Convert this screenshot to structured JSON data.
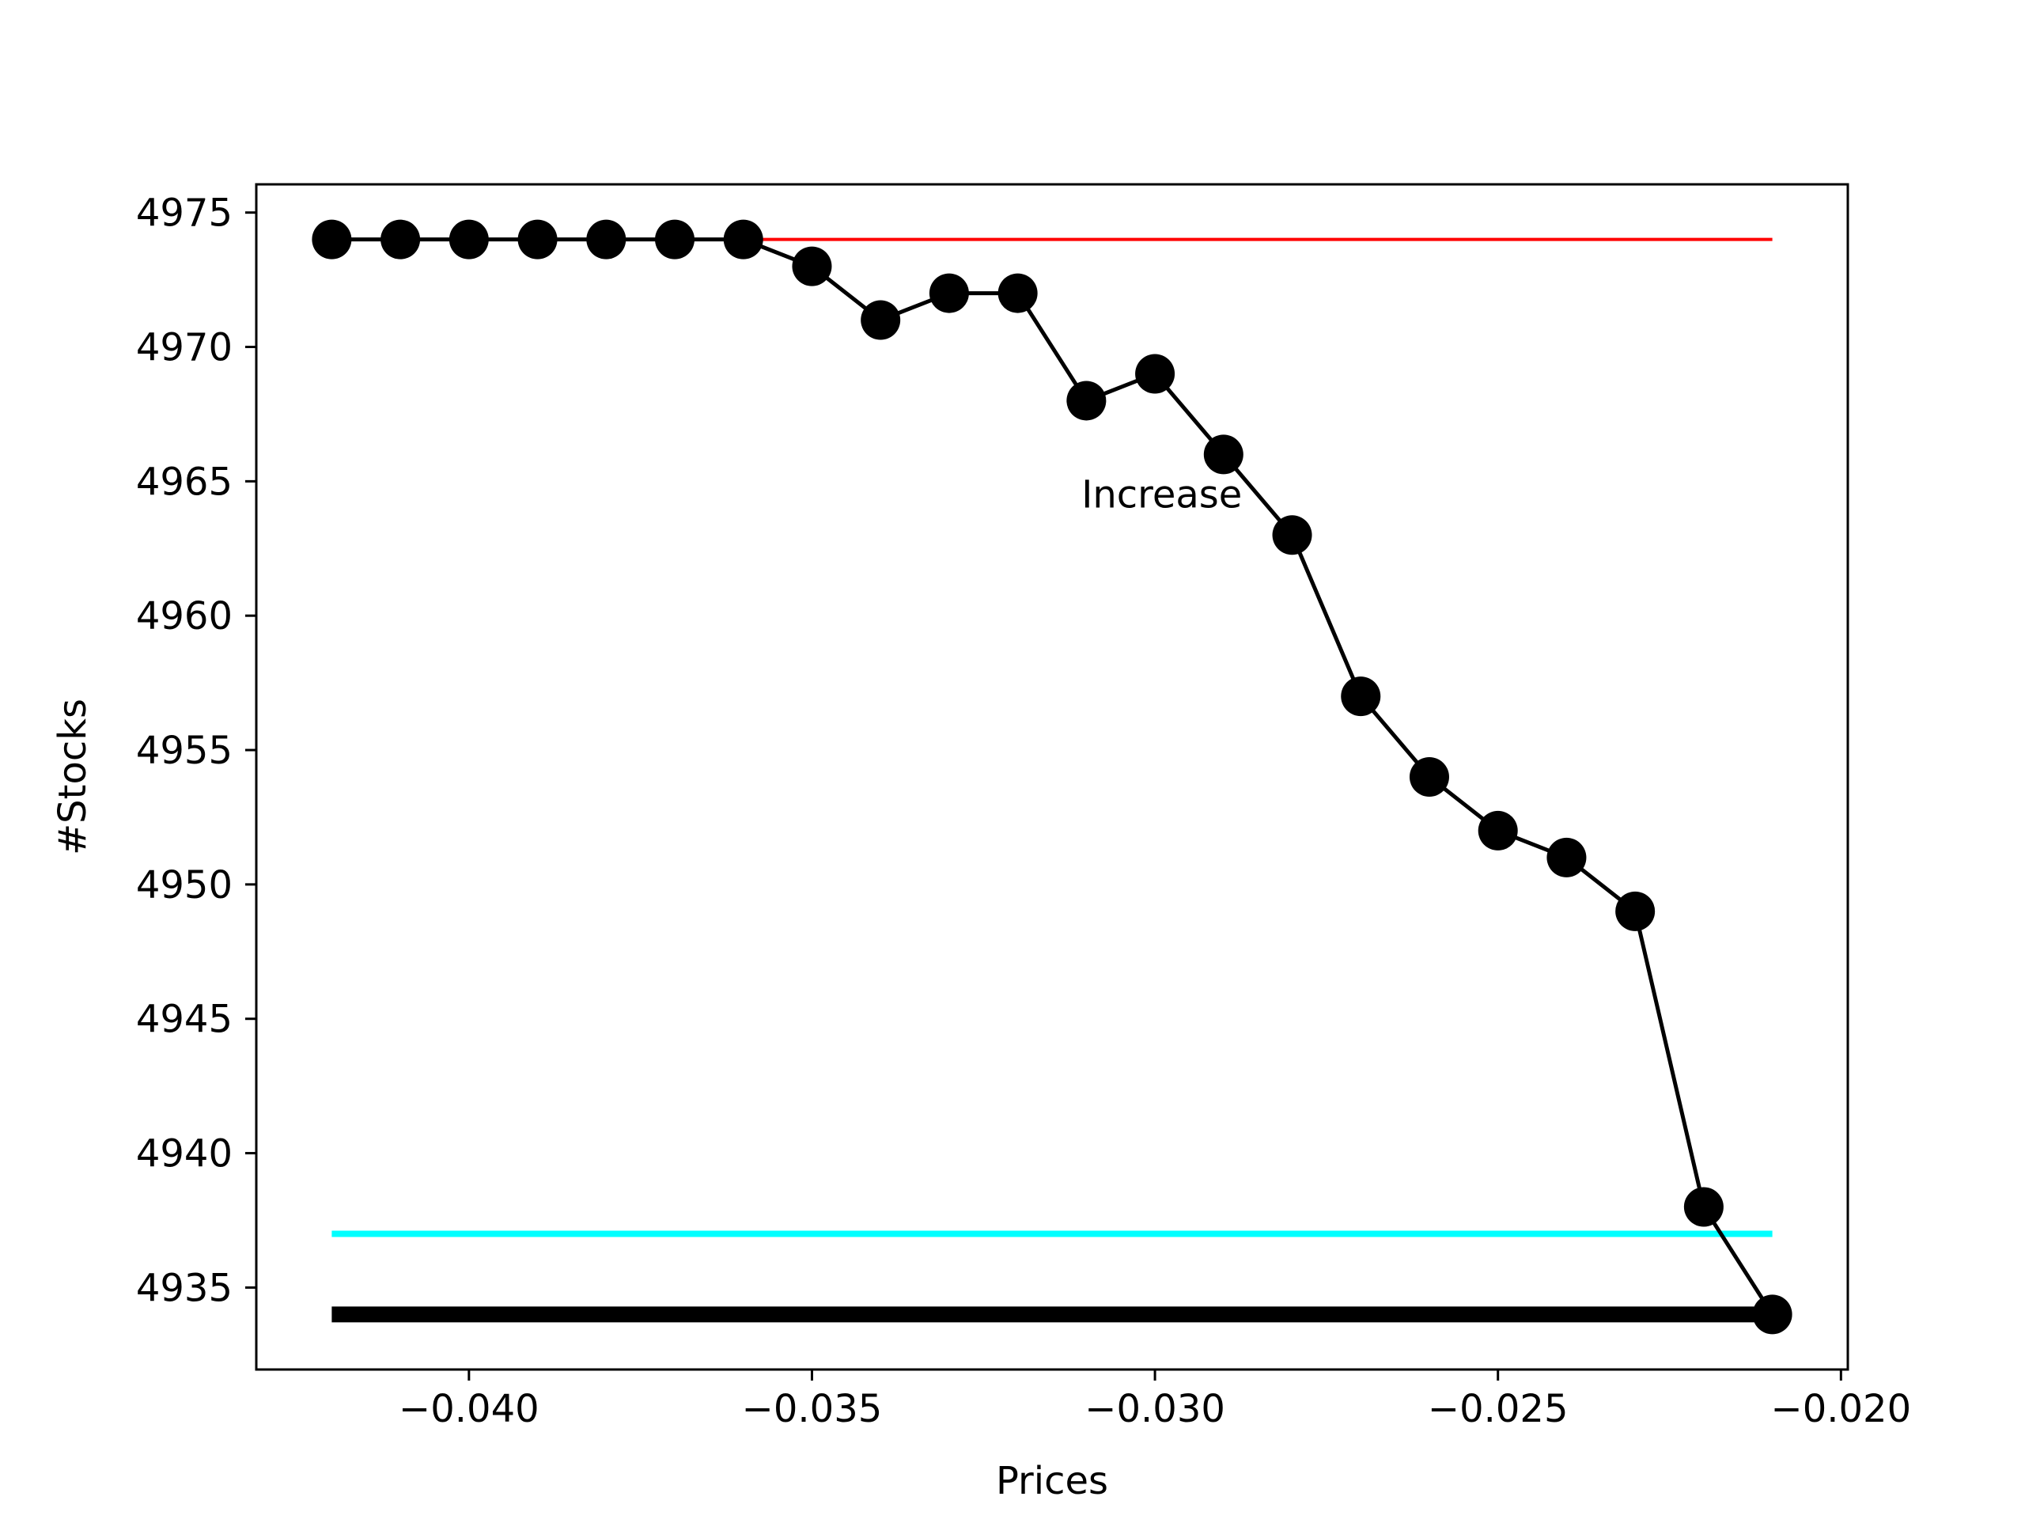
{
  "chart_data": {
    "type": "line",
    "title": "",
    "xlabel": "Prices",
    "ylabel": "#Stocks",
    "xlim": [
      -0.0431,
      -0.0199
    ],
    "ylim": [
      4931.95,
      4976.05
    ],
    "xticks": [
      {
        "value": -0.04,
        "label": "−0.040"
      },
      {
        "value": -0.035,
        "label": "−0.035"
      },
      {
        "value": -0.03,
        "label": "−0.030"
      },
      {
        "value": -0.025,
        "label": "−0.025"
      },
      {
        "value": -0.02,
        "label": "−0.020"
      }
    ],
    "yticks": [
      {
        "value": 4935,
        "label": "4935"
      },
      {
        "value": 4940,
        "label": "4940"
      },
      {
        "value": 4945,
        "label": "4945"
      },
      {
        "value": 4950,
        "label": "4950"
      },
      {
        "value": 4955,
        "label": "4955"
      },
      {
        "value": 4960,
        "label": "4960"
      },
      {
        "value": 4965,
        "label": "4965"
      },
      {
        "value": 4970,
        "label": "4970"
      },
      {
        "value": 4975,
        "label": "4975"
      }
    ],
    "grid": false,
    "legend": "none",
    "series": [
      {
        "color": "#000000",
        "marker": "circle",
        "x": [
          -0.042,
          -0.041,
          -0.04,
          -0.039,
          -0.038,
          -0.037,
          -0.036,
          -0.035,
          -0.034,
          -0.033,
          -0.032,
          -0.031,
          -0.03,
          -0.029,
          -0.028,
          -0.027,
          -0.026,
          -0.025,
          -0.024,
          -0.023,
          -0.022,
          -0.021
        ],
        "y": [
          4974,
          4974,
          4974,
          4974,
          4974,
          4974,
          4974,
          4973,
          4971,
          4972,
          4972,
          4968,
          4969,
          4966,
          4963,
          4957,
          4954,
          4952,
          4951,
          4949,
          4938,
          4934
        ]
      }
    ],
    "hlines": [
      {
        "y": 4974,
        "x_from": -0.036,
        "x_to": -0.021,
        "color": "#ff0000",
        "weight": "thin"
      },
      {
        "y": 4937,
        "x_from": -0.042,
        "x_to": -0.021,
        "color": "#00ffff",
        "weight": "medium"
      },
      {
        "y": 4934,
        "x_from": -0.042,
        "x_to": -0.021,
        "color": "#000000",
        "weight": "thick"
      }
    ],
    "annotations": [
      {
        "text": "Increase",
        "x": -0.0299,
        "y": 4964.5
      }
    ]
  }
}
